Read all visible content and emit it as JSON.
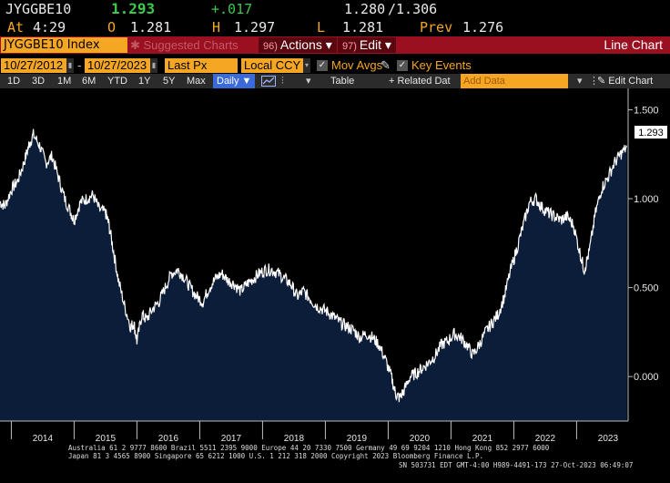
{
  "quote": {
    "ticker": "JYGGBE10",
    "last": "1.293",
    "change": "+.017",
    "bid_ask": "1.280",
    "ask": "/1.306",
    "at_label": "At",
    "time": "4:29",
    "open_label": "O",
    "open": "1.281",
    "high_label": "H",
    "high": "1.297",
    "low_label": "L",
    "low": "1.281",
    "prev_label": "Prev",
    "prev": "1.276"
  },
  "cmdbar": {
    "security": "JYGGBE10 Index",
    "suggested": "✱ Suggested Charts",
    "actions_num": "96)",
    "actions": "Actions ▾",
    "edit_num": "97)",
    "edit": "Edit ▾",
    "chart_type": "Line Chart"
  },
  "settings": {
    "start_date": "10/27/2012",
    "dash": "-",
    "end_date": "10/27/2023",
    "price_field": "Last Px",
    "currency": "Local CCY",
    "mov_avgs": "Mov Avgs",
    "key_events": "Key Events"
  },
  "toolbar": {
    "ranges": [
      "1D",
      "3D",
      "1M",
      "6M",
      "YTD",
      "1Y",
      "5Y",
      "Max"
    ],
    "frequency": "Daily ▼",
    "table": "Table",
    "related": "+ Related Dat",
    "add_data_placeholder": "Add Data",
    "edit_chart": "✎ Edit Chart",
    "chevron": "▾"
  },
  "colors": {
    "area": "#0c1d3a",
    "line": "#ffffff",
    "accent": "#f5a623",
    "cmdbar": "#9a1020"
  },
  "chart_data": {
    "type": "area",
    "y_ticks": [
      "1.500",
      "1.000",
      "0.500",
      "0.000"
    ],
    "y_tick_values": [
      1.5,
      1.0,
      0.5,
      0.0
    ],
    "ylim": [
      -0.25,
      1.62
    ],
    "xlim": [
      2013.82,
      2023.82
    ],
    "x_ticks": [
      "2014",
      "2015",
      "2016",
      "2017",
      "2018",
      "2019",
      "2020",
      "2021",
      "2022",
      "2023"
    ],
    "last_value_label": "1.293",
    "grid": false,
    "x": [
      2013.82,
      2013.9,
      2014.0,
      2014.1,
      2014.2,
      2014.28,
      2014.35,
      2014.45,
      2014.55,
      2014.65,
      2014.75,
      2014.85,
      2014.95,
      2015.0,
      2015.1,
      2015.2,
      2015.3,
      2015.4,
      2015.5,
      2015.55,
      2015.62,
      2015.7,
      2015.8,
      2015.9,
      2015.95,
      2016.0,
      2016.08,
      2016.15,
      2016.25,
      2016.35,
      2016.45,
      2016.55,
      2016.65,
      2016.75,
      2016.85,
      2016.95,
      2017.05,
      2017.15,
      2017.25,
      2017.35,
      2017.45,
      2017.55,
      2017.65,
      2017.75,
      2017.85,
      2017.95,
      2018.05,
      2018.15,
      2018.25,
      2018.35,
      2018.45,
      2018.55,
      2018.65,
      2018.75,
      2018.85,
      2018.95,
      2019.05,
      2019.15,
      2019.25,
      2019.35,
      2019.45,
      2019.55,
      2019.65,
      2019.75,
      2019.85,
      2019.95,
      2020.05,
      2020.12,
      2020.18,
      2020.25,
      2020.35,
      2020.45,
      2020.55,
      2020.65,
      2020.75,
      2020.85,
      2020.95,
      2021.05,
      2021.15,
      2021.25,
      2021.35,
      2021.45,
      2021.55,
      2021.65,
      2021.75,
      2021.85,
      2021.95,
      2022.05,
      2022.15,
      2022.25,
      2022.35,
      2022.45,
      2022.55,
      2022.65,
      2022.75,
      2022.85,
      2022.95,
      2023.05,
      2023.12,
      2023.2,
      2023.3,
      2023.4,
      2023.5,
      2023.6,
      2023.7,
      2023.8
    ],
    "y": [
      0.98,
      0.96,
      1.05,
      1.1,
      1.2,
      1.3,
      1.36,
      1.3,
      1.2,
      1.24,
      1.12,
      1.0,
      0.92,
      0.88,
      0.98,
      1.0,
      1.02,
      0.94,
      0.92,
      0.86,
      0.72,
      0.55,
      0.4,
      0.28,
      0.3,
      0.2,
      0.35,
      0.32,
      0.38,
      0.42,
      0.5,
      0.58,
      0.6,
      0.56,
      0.5,
      0.45,
      0.42,
      0.5,
      0.55,
      0.58,
      0.54,
      0.52,
      0.48,
      0.52,
      0.55,
      0.58,
      0.6,
      0.6,
      0.58,
      0.55,
      0.52,
      0.45,
      0.48,
      0.44,
      0.4,
      0.38,
      0.36,
      0.33,
      0.3,
      0.28,
      0.26,
      0.22,
      0.24,
      0.22,
      0.18,
      0.1,
      0.0,
      -0.1,
      -0.12,
      -0.08,
      0.0,
      0.02,
      0.05,
      0.08,
      0.12,
      0.18,
      0.2,
      0.24,
      0.22,
      0.18,
      0.12,
      0.18,
      0.25,
      0.3,
      0.35,
      0.45,
      0.6,
      0.72,
      0.85,
      0.98,
      1.0,
      0.95,
      0.92,
      0.9,
      0.88,
      0.9,
      0.85,
      0.7,
      0.6,
      0.7,
      0.92,
      1.06,
      1.12,
      1.2,
      1.25,
      1.29
    ]
  },
  "footer": {
    "line1": "Australia 61 2 9777 8600 Brazil 5511 2395 9000 Europe 44 20 7330 7500 Germany 49 69 9204 1210 Hong Kong 852 2977 6000",
    "line2": "Japan 81 3 4565 8900      Singapore 65 6212 1000      U.S. 1 212 318 2000      Copyright 2023 Bloomberg Finance L.P.",
    "line3": "SN 503731 EDT  GMT-4:00 H989-4491-173 27-Oct-2023 06:49:07"
  }
}
